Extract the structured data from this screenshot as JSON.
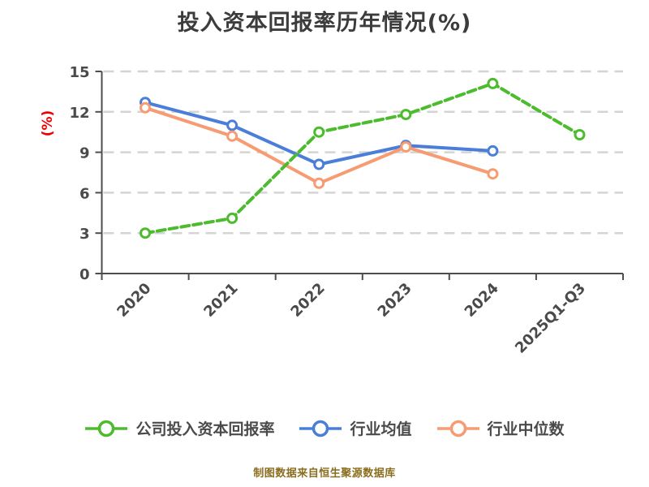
{
  "title": "投入资本回报率历年情况(%)",
  "footer": {
    "text": "制图数据来自恒生聚源数据库"
  },
  "colors": {
    "background": "#FFFFFF",
    "title_text": "#3C3C3C",
    "axis": "#4D4D4D",
    "tick_text": "#4A4A4A",
    "grid": "#D4D4D4",
    "ylabel_red": "#EE0000",
    "footer": "#8A6D1E",
    "series_green": "#4CBB2E",
    "series_blue": "#4A7ED9",
    "series_orange": "#F79B72"
  },
  "chart_data": {
    "type": "line",
    "title": "投入资本回报率历年情况(%)",
    "ylabel": "(%)",
    "xlabel": "",
    "categories": [
      "2020",
      "2021",
      "2022",
      "2023",
      "2024",
      "2025Q1-Q3"
    ],
    "y_ticks": [
      0,
      3,
      6,
      9,
      12,
      15
    ],
    "ylim": [
      0,
      15
    ],
    "grid": "horizontal-dashed",
    "legend_position": "bottom",
    "series": [
      {
        "name": "公司投入资本回报率",
        "color": "#4CBB2E",
        "line_style": "dashed",
        "marker": "circle-open",
        "values": [
          3.0,
          4.1,
          10.5,
          11.8,
          14.1,
          10.3
        ]
      },
      {
        "name": "行业均值",
        "color": "#4A7ED9",
        "line_style": "solid",
        "marker": "circle-open",
        "values": [
          12.7,
          11.0,
          8.1,
          9.5,
          9.1,
          null
        ]
      },
      {
        "name": "行业中位数",
        "color": "#F79B72",
        "line_style": "solid",
        "marker": "circle-open",
        "values": [
          12.3,
          10.2,
          6.7,
          9.4,
          7.4,
          null
        ]
      }
    ]
  }
}
